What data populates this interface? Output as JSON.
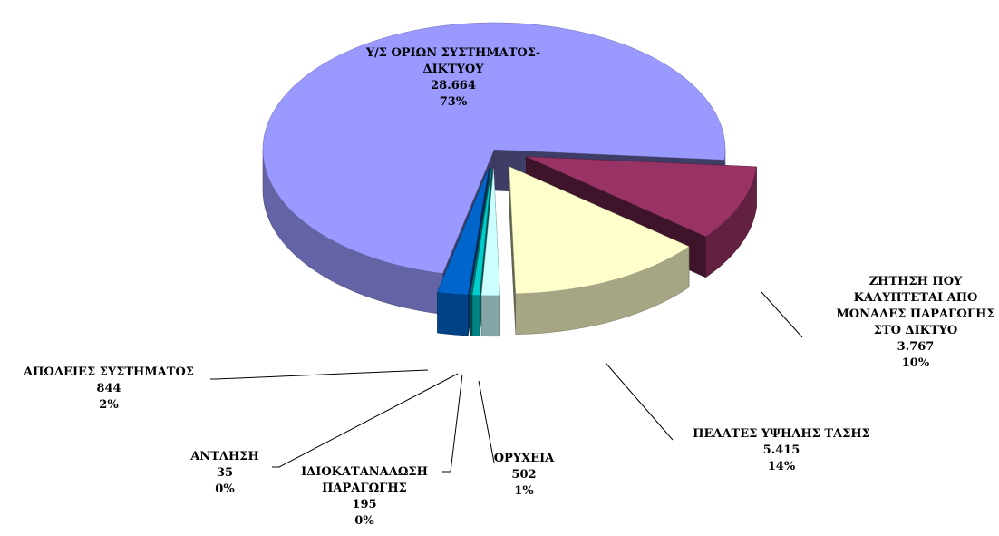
{
  "chart_data": {
    "type": "pie",
    "labels": [
      "ΖΗΤΗΣΗ ΠΟΥ ΚΑΛΥΠΤΕΤΑΙ ΑΠΟ ΜΟΝΑΔΕΣ ΠΑΡΑΓΩΓΗΣ ΣΤΟ ΔΙΚΤΥΟ",
      "ΠΕΛΑΤΕΣ ΥΨΗΛΗΣ ΤΑΣΗΣ",
      "ΟΡΥΧΕΙΑ",
      "ΙΔΙΟΚΑΤΑΝΑΛΩΣΗ ΠΑΡΑΓΩΓΗΣ",
      "ΑΝΤΛΗΣΗ",
      "ΑΠΩΛΕΙΕΣ ΣΥΣΤΗΜΑΤΟΣ",
      "Υ/Σ ΟΡΙΩΝ ΣΥΣΤΗΜΑΤΟΣ-ΔΙΚΤΥΟΥ"
    ],
    "values": [
      3767,
      5415,
      502,
      195,
      35,
      844,
      28664
    ],
    "value_labels": [
      "3.767",
      "5.415",
      "502",
      "195",
      "35",
      "844",
      "28.664"
    ],
    "percent_labels": [
      "10%",
      "14%",
      "1%",
      "0%",
      "0%",
      "2%",
      "73%"
    ],
    "colors": [
      "#993366",
      "#ffffcc",
      "#ccffff",
      "#00cccc",
      "#008080",
      "#0066cc",
      "#9999ff"
    ]
  }
}
